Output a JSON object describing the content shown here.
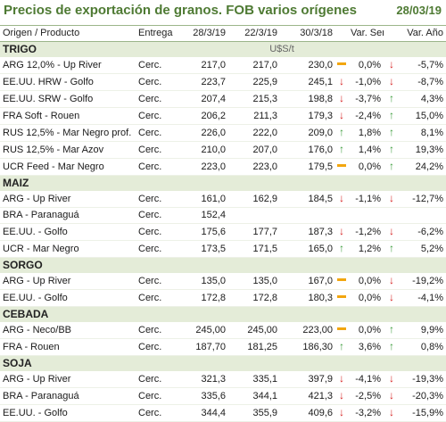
{
  "title": "Precios de exportación de granos. FOB varios orígenes",
  "date": "28/03/19",
  "columns": [
    "Origen / Producto",
    "Entrega",
    "28/3/19",
    "22/3/19",
    "30/3/18",
    "Var. Sem.",
    "Var. Año"
  ],
  "unit": "U$S/t",
  "colors": {
    "title": "#4e7a33",
    "section_bg": "#e4ecd8",
    "up": "#3a9b3a",
    "down": "#d62020",
    "flat": "#f2a60f"
  },
  "sections": [
    {
      "name": "TRIGO",
      "rows": [
        {
          "product": "ARG 12,0% - Up River",
          "entrega": "Cerc.",
          "v1": "217,0",
          "v2": "217,0",
          "v3": "230,0",
          "t3": "flat",
          "ws": "0,0%",
          "tw": "down",
          "ya": "-5,7%"
        },
        {
          "product": "EE.UU. HRW - Golfo",
          "entrega": "Cerc.",
          "v1": "223,7",
          "v2": "225,9",
          "v3": "245,1",
          "t3": "down",
          "ws": "-1,0%",
          "tw": "down",
          "ya": "-8,7%"
        },
        {
          "product": "EE.UU. SRW - Golfo",
          "entrega": "Cerc.",
          "v1": "207,4",
          "v2": "215,3",
          "v3": "198,8",
          "t3": "down",
          "ws": "-3,7%",
          "tw": "up",
          "ya": "4,3%"
        },
        {
          "product": "FRA Soft - Rouen",
          "entrega": "Cerc.",
          "v1": "206,2",
          "v2": "211,3",
          "v3": "179,3",
          "t3": "down",
          "ws": "-2,4%",
          "tw": "up",
          "ya": "15,0%"
        },
        {
          "product": "RUS 12,5% - Mar Negro prof.",
          "entrega": "Cerc.",
          "v1": "226,0",
          "v2": "222,0",
          "v3": "209,0",
          "t3": "up",
          "ws": "1,8%",
          "tw": "up",
          "ya": "8,1%"
        },
        {
          "product": "RUS 12,5% - Mar Azov",
          "entrega": "Cerc.",
          "v1": "210,0",
          "v2": "207,0",
          "v3": "176,0",
          "t3": "up",
          "ws": "1,4%",
          "tw": "up",
          "ya": "19,3%"
        },
        {
          "product": "UCR Feed - Mar Negro",
          "entrega": "Cerc.",
          "v1": "223,0",
          "v2": "223,0",
          "v3": "179,5",
          "t3": "flat",
          "ws": "0,0%",
          "tw": "up",
          "ya": "24,2%"
        }
      ]
    },
    {
      "name": "MAIZ",
      "rows": [
        {
          "product": "ARG - Up River",
          "entrega": "Cerc.",
          "v1": "161,0",
          "v2": "162,9",
          "v3": "184,5",
          "t3": "down",
          "ws": "-1,1%",
          "tw": "down",
          "ya": "-12,7%"
        },
        {
          "product": "BRA - Paranaguá",
          "entrega": "Cerc.",
          "v1": "152,4",
          "v2": "",
          "v3": "",
          "t3": "",
          "ws": "",
          "tw": "",
          "ya": ""
        },
        {
          "product": "EE.UU. - Golfo",
          "entrega": "Cerc.",
          "v1": "175,6",
          "v2": "177,7",
          "v3": "187,3",
          "t3": "down",
          "ws": "-1,2%",
          "tw": "down",
          "ya": "-6,2%"
        },
        {
          "product": "UCR - Mar Negro",
          "entrega": "Cerc.",
          "v1": "173,5",
          "v2": "171,5",
          "v3": "165,0",
          "t3": "up",
          "ws": "1,2%",
          "tw": "up",
          "ya": "5,2%"
        }
      ]
    },
    {
      "name": "SORGO",
      "rows": [
        {
          "product": "ARG - Up River",
          "entrega": "Cerc.",
          "v1": "135,0",
          "v2": "135,0",
          "v3": "167,0",
          "t3": "flat",
          "ws": "0,0%",
          "tw": "down",
          "ya": "-19,2%"
        },
        {
          "product": "EE.UU. - Golfo",
          "entrega": "Cerc.",
          "v1": "172,8",
          "v2": "172,8",
          "v3": "180,3",
          "t3": "flat",
          "ws": "0,0%",
          "tw": "down",
          "ya": "-4,1%"
        }
      ]
    },
    {
      "name": "CEBADA",
      "rows": [
        {
          "product": "ARG - Neco/BB",
          "entrega": "Cerc.",
          "v1": "245,00",
          "v2": "245,00",
          "v3": "223,00",
          "t3": "flat",
          "ws": "0,0%",
          "tw": "up",
          "ya": "9,9%"
        },
        {
          "product": "FRA - Rouen",
          "entrega": "Cerc.",
          "v1": "187,70",
          "v2": "181,25",
          "v3": "186,30",
          "t3": "up",
          "ws": "3,6%",
          "tw": "up",
          "ya": "0,8%"
        }
      ]
    },
    {
      "name": "SOJA",
      "rows": [
        {
          "product": "ARG - Up River",
          "entrega": "Cerc.",
          "v1": "321,3",
          "v2": "335,1",
          "v3": "397,9",
          "t3": "down",
          "ws": "-4,1%",
          "tw": "down",
          "ya": "-19,3%"
        },
        {
          "product": "BRA - Paranaguá",
          "entrega": "Cerc.",
          "v1": "335,6",
          "v2": "344,1",
          "v3": "421,3",
          "t3": "down",
          "ws": "-2,5%",
          "tw": "down",
          "ya": "-20,3%"
        },
        {
          "product": "EE.UU. - Golfo",
          "entrega": "Cerc.",
          "v1": "344,4",
          "v2": "355,9",
          "v3": "409,6",
          "t3": "down",
          "ws": "-3,2%",
          "tw": "down",
          "ya": "-15,9%"
        }
      ]
    }
  ]
}
